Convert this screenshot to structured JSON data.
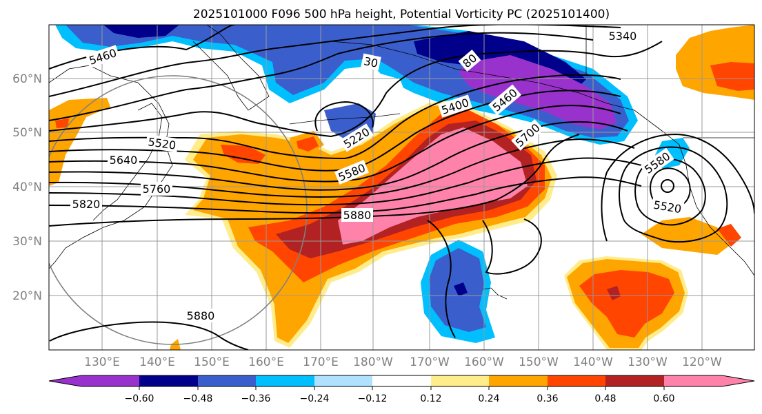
{
  "title": "2025101000 F096 500 hPa height, Potential Vorticity PC (2025101400)",
  "lat_labels": [
    "60°N",
    "50°N",
    "40°N",
    "30°N",
    "20°N"
  ],
  "lon_labels": [
    "130°E",
    "140°E",
    "150°E",
    "160°E",
    "170°E",
    "180°W",
    "170°W",
    "160°W",
    "150°W",
    "140°W",
    "130°W",
    "120°W"
  ],
  "colorbar": {
    "ticks": [
      "−0.60",
      "−0.48",
      "−0.36",
      "−0.24",
      "−0.12",
      "0.12",
      "0.24",
      "0.36",
      "0.48",
      "0.60"
    ],
    "colors": [
      "#9932cc",
      "#00008b",
      "#3a5fcd",
      "#00bfff",
      "#b0e2ff",
      "#ffffff",
      "#ffec8b",
      "#ffa500",
      "#ff4500",
      "#b22222",
      "#ff82ab"
    ]
  },
  "contour_labels": [
    "5460",
    "5520",
    "5640",
    "5760",
    "5820",
    "5220",
    "5580",
    "5400",
    "5880",
    "5880",
    "5340",
    "30",
    "80",
    "5460",
    "5700",
    "5580",
    "5520"
  ],
  "colors": {
    "purple": "#9932cc",
    "navy": "#00008b",
    "blue": "#3a5fcd",
    "sky": "#00bfff",
    "lightblue": "#b0e2ff",
    "yellow": "#ffec8b",
    "orange": "#ffa500",
    "red": "#ff4500",
    "darkred": "#b22222",
    "pink": "#ff82ab"
  }
}
